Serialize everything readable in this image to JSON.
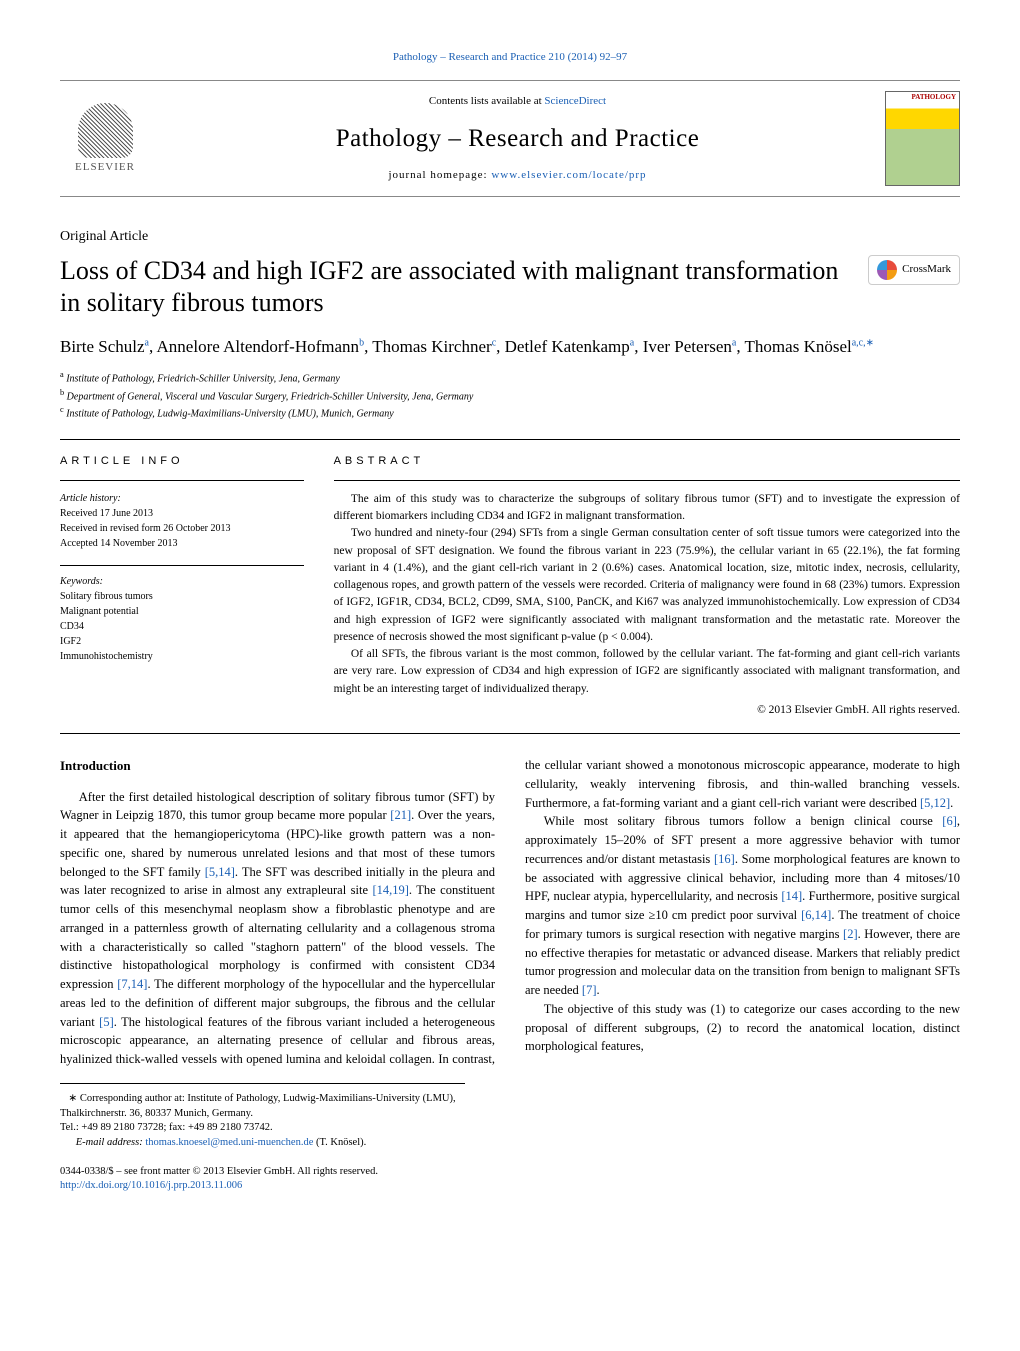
{
  "header_link": "Pathology – Research and Practice 210 (2014) 92–97",
  "masthead": {
    "contents_prefix": "Contents lists available at ",
    "contents_link": "ScienceDirect",
    "journal_title": "Pathology – Research and Practice",
    "homepage_prefix": "journal homepage: ",
    "homepage_link": "www.elsevier.com/locate/prp",
    "publisher": "ELSEVIER",
    "cover_title": "PATHOLOGY"
  },
  "article_type": "Original Article",
  "title": "Loss of CD34 and high IGF2 are associated with malignant transformation in solitary fibrous tumors",
  "crossmark_label": "CrossMark",
  "authors_html": "Birte Schulz<sup>a</sup>, Annelore Altendorf-Hofmann<sup>b</sup>, Thomas Kirchner<sup>c</sup>, Detlef Katenkamp<sup>a</sup>, Iver Petersen<sup>a</sup>, Thomas Knösel<sup>a,c,∗</sup>",
  "affiliations": {
    "a": "Institute of Pathology, Friedrich-Schiller University, Jena, Germany",
    "b": "Department of General, Visceral und Vascular Surgery, Friedrich-Schiller University, Jena, Germany",
    "c": "Institute of Pathology, Ludwig-Maximilians-University (LMU), Munich, Germany"
  },
  "info_heading": "ARTICLE INFO",
  "abstract_heading": "ABSTRACT",
  "article_history": {
    "label": "Article history:",
    "received": "Received 17 June 2013",
    "revised": "Received in revised form 26 October 2013",
    "accepted": "Accepted 14 November 2013"
  },
  "keywords_label": "Keywords:",
  "keywords": [
    "Solitary fibrous tumors",
    "Malignant potential",
    "CD34",
    "IGF2",
    "Immunohistochemistry"
  ],
  "abstract": {
    "p1": "The aim of this study was to characterize the subgroups of solitary fibrous tumor (SFT) and to investigate the expression of different biomarkers including CD34 and IGF2 in malignant transformation.",
    "p2": "Two hundred and ninety-four (294) SFTs from a single German consultation center of soft tissue tumors were categorized into the new proposal of SFT designation. We found the fibrous variant in 223 (75.9%), the cellular variant in 65 (22.1%), the fat forming variant in 4 (1.4%), and the giant cell-rich variant in 2 (0.6%) cases. Anatomical location, size, mitotic index, necrosis, cellularity, collagenous ropes, and growth pattern of the vessels were recorded. Criteria of malignancy were found in 68 (23%) tumors. Expression of IGF2, IGF1R, CD34, BCL2, CD99, SMA, S100, PanCK, and Ki67 was analyzed immunohistochemically. Low expression of CD34 and high expression of IGF2 were significantly associated with malignant transformation and the metastatic rate. Moreover the presence of necrosis showed the most significant p-value (p < 0.004).",
    "p3": "Of all SFTs, the fibrous variant is the most common, followed by the cellular variant. The fat-forming and giant cell-rich variants are very rare. Low expression of CD34 and high expression of IGF2 are significantly associated with malignant transformation, and might be an interesting target of individualized therapy.",
    "copyright": "© 2013 Elsevier GmbH. All rights reserved."
  },
  "intro_heading": "Introduction",
  "intro": {
    "p1_a": "After the first detailed histological description of solitary fibrous tumor (SFT) by Wagner in Leipzig 1870, this tumor group became more popular ",
    "r1": "[21]",
    "p1_b": ". Over the years, it appeared that the hemangiopericytoma (HPC)-like growth pattern was a non-specific one, shared by numerous unrelated lesions and that most of these tumors belonged to the SFT family ",
    "r2": "[5,14]",
    "p1_c": ". The SFT was described initially in the pleura and was later recognized to arise in almost any extrapleural site ",
    "r3": "[14,19]",
    "p1_d": ". The constituent tumor cells of this mesenchymal neoplasm show a fibroblastic phenotype and are arranged in a patternless growth of alternating cellularity and a collagenous stroma with a characteristically so called \"staghorn pattern\" of the blood vessels. The distinctive histopathological morphology is confirmed with consistent CD34 expression ",
    "r4": "[7,14]",
    "p1_e": ". The different morphology of the hypocellular and the hypercellular areas led to the definition of different major subgroups, the ",
    "p2_a": "fibrous and the cellular variant ",
    "r5": "[5]",
    "p2_b": ". The histological features of the fibrous variant included a heterogeneous microscopic appearance, an alternating presence of cellular and fibrous areas, hyalinized thick-walled vessels with opened lumina and keloidal collagen. In contrast, the cellular variant showed a monotonous microscopic appearance, moderate to high cellularity, weakly intervening fibrosis, and thin-walled branching vessels. Furthermore, a fat-forming variant and a giant cell-rich variant were described ",
    "r6": "[5,12]",
    "p2_c": ".",
    "p3_a": "While most solitary fibrous tumors follow a benign clinical course ",
    "r7": "[6]",
    "p3_b": ", approximately 15–20% of SFT present a more aggressive behavior with tumor recurrences and/or distant metastasis ",
    "r8": "[16]",
    "p3_c": ". Some morphological features are known to be associated with aggressive clinical behavior, including more than 4 mitoses/10 HPF, nuclear atypia, hypercellularity, and necrosis ",
    "r9": "[14]",
    "p3_d": ". Furthermore, positive surgical margins and tumor size ≥10 cm predict poor survival ",
    "r10": "[6,14]",
    "p3_e": ". The treatment of choice for primary tumors is surgical resection with negative margins ",
    "r11": "[2]",
    "p3_f": ". However, there are no effective therapies for metastatic or advanced disease. Markers that reliably predict tumor progression and molecular data on the transition from benign to malignant SFTs are needed ",
    "r12": "[7]",
    "p3_g": ".",
    "p4": "The objective of this study was (1) to categorize our cases according to the new proposal of different subgroups, (2) to record the anatomical location, distinct morphological features,"
  },
  "footnotes": {
    "corr": "∗ Corresponding author at: Institute of Pathology, Ludwig-Maximilians-University (LMU), Thalkirchnerstr. 36, 80337 Munich, Germany.",
    "tel": "Tel.: +49 89 2180 73728; fax: +49 89 2180 73742.",
    "email_label": "E-mail address: ",
    "email": "thomas.knoesel@med.uni-muenchen.de",
    "email_suffix": " (T. Knösel)."
  },
  "bottom": {
    "issn": "0344-0338/$ – see front matter © 2013 Elsevier GmbH. All rights reserved.",
    "doi": "http://dx.doi.org/10.1016/j.prp.2013.11.006"
  }
}
